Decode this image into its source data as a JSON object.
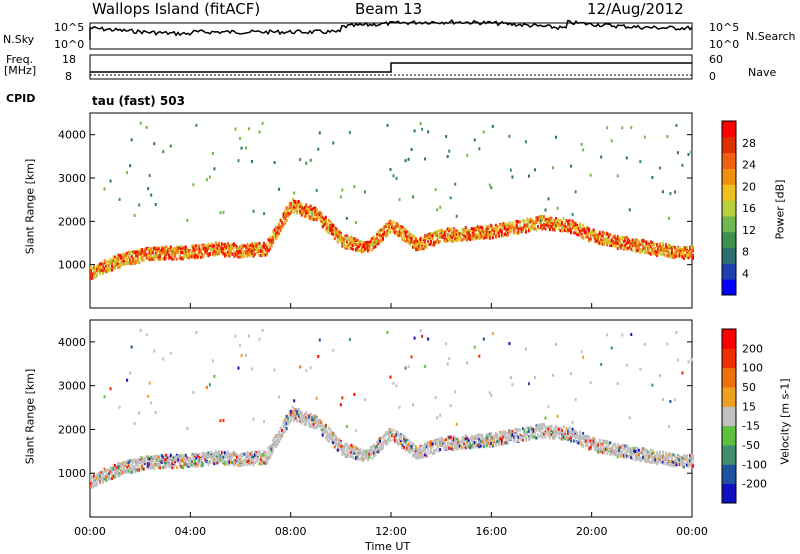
{
  "header": {
    "title": "Wallops Island (fitACF)",
    "beam": "Beam 13",
    "date": "12/Aug/2012"
  },
  "top_panels": {
    "nsky_label": "N.Sky",
    "nsearch_label": "N.Search",
    "nsky_ticks": [
      "10^5",
      "10^0"
    ],
    "nsearch_ticks": [
      "10^5",
      "10^0"
    ],
    "freq_label_line1": "Freq.",
    "freq_label_line2": "[MHz]",
    "freq_ticks": [
      "18",
      "8"
    ],
    "nave_label": "Nave",
    "nave_ticks": [
      "60",
      "0"
    ],
    "cpid_label": "CPID",
    "cpid_value": "tau (fast) 503"
  },
  "colorbars": {
    "power": {
      "label": "Power [dB]",
      "ticks": [
        "28",
        "24",
        "20",
        "16",
        "12",
        "8",
        "4"
      ],
      "colors": [
        "#0000ff",
        "#1f3fae",
        "#2e6e6e",
        "#3f8f4f",
        "#6fb84f",
        "#b8d040",
        "#f0c020",
        "#f09010",
        "#f06010",
        "#e03000",
        "#ff0000"
      ]
    },
    "velocity": {
      "label": "Velocity [m s-1]",
      "ticks": [
        "200",
        "100",
        "50",
        "15",
        "-15",
        "-50",
        "-100",
        "-200"
      ],
      "colors": [
        "#1010c0",
        "#2050a0",
        "#3f8f6f",
        "#5fbf3f",
        "#c0c0c0",
        "#f0a020",
        "#f07010",
        "#f03000",
        "#ff0000"
      ]
    }
  },
  "chart_data": [
    {
      "type": "scatter",
      "panel": "power",
      "ylabel": "Slant Range [km]",
      "ylim": [
        0,
        4500
      ],
      "y_ticks": [
        1000,
        2000,
        3000,
        4000
      ],
      "xlim": [
        0,
        24
      ],
      "series": [
        {
          "name": "main echo band",
          "x": [
            0,
            1,
            2,
            3,
            4,
            5,
            6,
            7,
            8,
            9,
            10,
            11,
            12,
            13,
            14,
            15,
            16,
            17,
            18,
            19,
            20,
            21,
            22,
            23,
            24
          ],
          "y": [
            850,
            1100,
            1250,
            1300,
            1320,
            1400,
            1350,
            1400,
            2400,
            2200,
            1600,
            1400,
            1950,
            1500,
            1700,
            1750,
            1800,
            1900,
            2000,
            1950,
            1700,
            1550,
            1450,
            1350,
            1300
          ]
        }
      ]
    },
    {
      "type": "scatter",
      "panel": "velocity",
      "ylabel": "Slant Range [km]",
      "xlabel": "Time UT",
      "ylim": [
        0,
        4500
      ],
      "y_ticks": [
        1000,
        2000,
        3000,
        4000
      ],
      "xlim": [
        0,
        24
      ],
      "x_ticks": [
        "00:00",
        "04:00",
        "08:00",
        "12:00",
        "16:00",
        "20:00",
        "00:00"
      ]
    }
  ]
}
